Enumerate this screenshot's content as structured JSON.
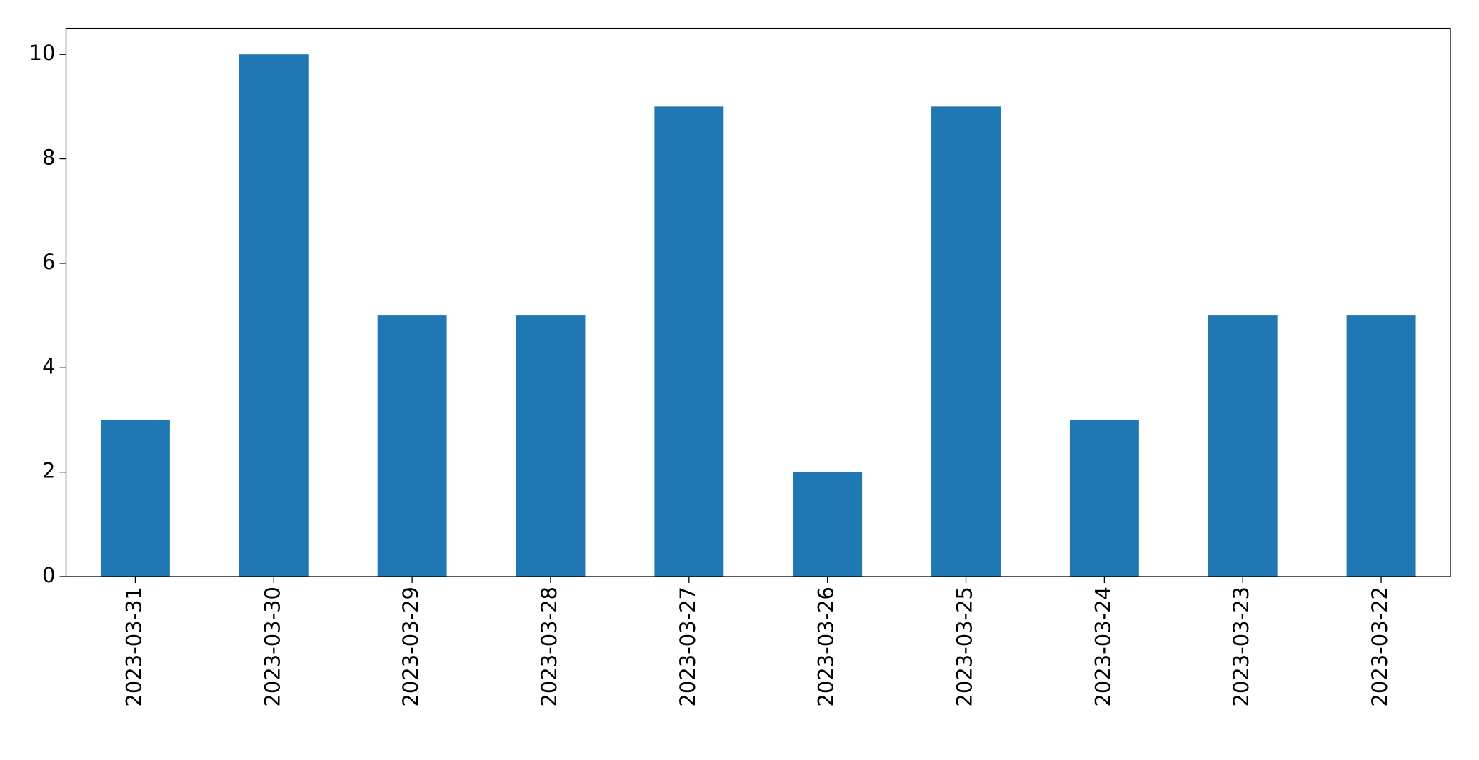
{
  "chart_data": {
    "type": "bar",
    "categories": [
      "2023-03-31",
      "2023-03-30",
      "2023-03-29",
      "2023-03-28",
      "2023-03-27",
      "2023-03-26",
      "2023-03-25",
      "2023-03-24",
      "2023-03-23",
      "2023-03-22"
    ],
    "values": [
      3,
      10,
      5,
      5,
      9,
      2,
      9,
      3,
      5,
      5
    ],
    "color": "#1f77b4",
    "ylim": [
      0,
      10.5
    ],
    "yticks": [
      0,
      2,
      4,
      6,
      8,
      10
    ],
    "grid": false
  }
}
